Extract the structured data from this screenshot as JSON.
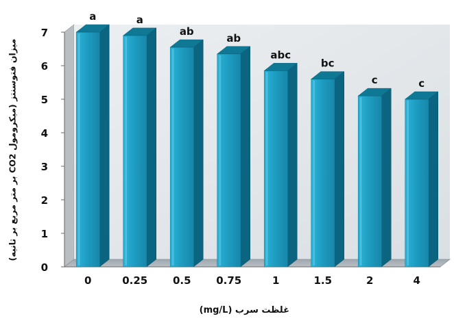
{
  "chart_data": {
    "type": "bar",
    "categories": [
      "0",
      "0.25",
      "0.5",
      "0.75",
      "1",
      "1.5",
      "2",
      "4"
    ],
    "values": [
      7.0,
      6.9,
      6.55,
      6.35,
      5.85,
      5.6,
      5.1,
      5.0
    ],
    "significance_letters": [
      "a",
      "a",
      "ab",
      "ab",
      "abc",
      "bc",
      "c",
      "c"
    ],
    "yticks": [
      "0",
      "1",
      "2",
      "3",
      "4",
      "5",
      "6",
      "7"
    ],
    "xlabel": "غلظت سرب (mg/L)",
    "ylabel": "میزان فتوسنتز (میکرومول CO2 بر متر مربع بر ثانیه)",
    "ylim": [
      0,
      7
    ],
    "grid": false,
    "legend": "none",
    "bar_style": "3d-cylindrical",
    "colors": {
      "bar_front": "#21a3c9",
      "bar_side": "#0b6580",
      "bar_top": "#0f7895",
      "floor": "#a9b0b6",
      "back_wall": "#dfe3e6",
      "axis": "#666666"
    }
  }
}
